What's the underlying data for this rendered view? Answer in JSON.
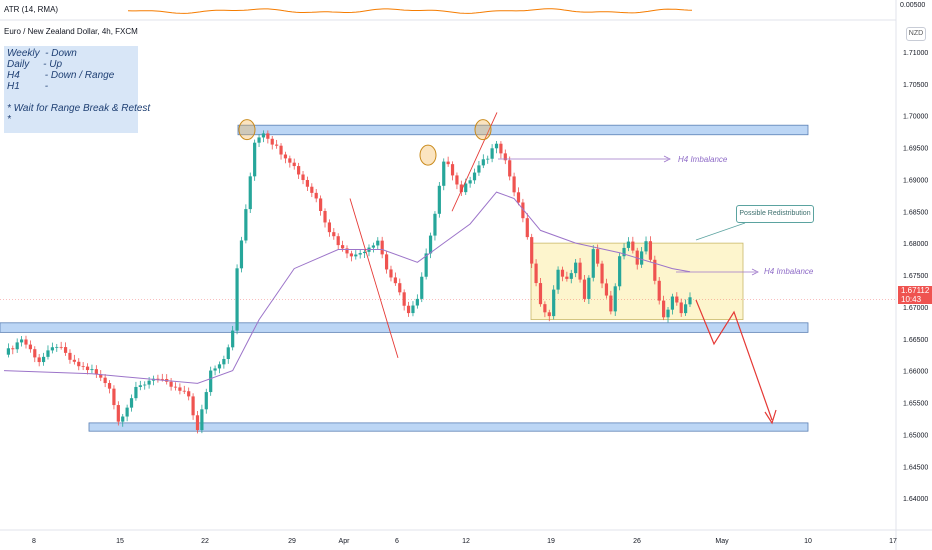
{
  "indicator": {
    "label": "ATR (14, RMA)",
    "axis_value": "0.00500"
  },
  "symbol": {
    "title": "Euro / New Zealand Dollar, 4h, FXCM",
    "currency": "NZD"
  },
  "note": {
    "lines": [
      "Weekly  - Down",
      "Daily     - Up",
      "H4         - Down / Range",
      "H1         -",
      "",
      "* Wait for Range Break & Retest",
      "*"
    ]
  },
  "price_tag": {
    "price": "1.67112",
    "countdown": "10:43"
  },
  "annotations": {
    "h4_imbalance_upper": "H4 Imbalance",
    "h4_imbalance_lower": "H4 Imbalance",
    "redistribution": "Possible Redistribution"
  },
  "colors": {
    "up": "#26a69a",
    "down": "#ef5350",
    "zone": "#bcd6f5",
    "range": "#fdf3c4",
    "ma": "#9c74c9",
    "arrow": "#e53935"
  },
  "chart_data": {
    "type": "candlestick",
    "title": "Euro / New Zealand Dollar, 4h, FXCM",
    "yaxis": {
      "min": 1.635,
      "max": 1.715,
      "ticks": [
        "1.71000",
        "1.70500",
        "1.70000",
        "1.69500",
        "1.69000",
        "1.68500",
        "1.68000",
        "1.67500",
        "1.67000",
        "1.66500",
        "1.66000",
        "1.65500",
        "1.65000",
        "1.64500",
        "1.64000"
      ]
    },
    "xaxis": {
      "ticks": [
        "8",
        "15",
        "22",
        "29",
        "Apr",
        "6",
        "12",
        "19",
        "26",
        "May",
        "10",
        "17"
      ]
    },
    "price_path": [
      [
        0,
        1.6625
      ],
      [
        4,
        1.665
      ],
      [
        8,
        1.6615
      ],
      [
        12,
        1.664
      ],
      [
        16,
        1.661
      ],
      [
        20,
        1.66
      ],
      [
        24,
        1.6575
      ],
      [
        26,
        1.652
      ],
      [
        30,
        1.657
      ],
      [
        34,
        1.659
      ],
      [
        38,
        1.6575
      ],
      [
        42,
        1.656
      ],
      [
        44,
        1.6505
      ],
      [
        47,
        1.66
      ],
      [
        50,
        1.662
      ],
      [
        52,
        1.666
      ],
      [
        53,
        1.676
      ],
      [
        55,
        1.685
      ],
      [
        57,
        1.696
      ],
      [
        59,
        1.6975
      ],
      [
        62,
        1.695
      ],
      [
        65,
        1.693
      ],
      [
        68,
        1.69
      ],
      [
        71,
        1.687
      ],
      [
        74,
        1.682
      ],
      [
        77,
        1.679
      ],
      [
        80,
        1.678
      ],
      [
        83,
        1.6795
      ],
      [
        85,
        1.6805
      ],
      [
        87,
        1.676
      ],
      [
        90,
        1.672
      ],
      [
        92,
        1.669
      ],
      [
        94,
        1.671
      ],
      [
        96,
        1.678
      ],
      [
        98,
        1.685
      ],
      [
        100,
        1.693
      ],
      [
        102,
        1.691
      ],
      [
        104,
        1.688
      ],
      [
        106,
        1.69
      ],
      [
        108,
        1.692
      ],
      [
        110,
        1.6935
      ],
      [
        112,
        1.696
      ],
      [
        114,
        1.693
      ],
      [
        116,
        1.688
      ],
      [
        118,
        1.684
      ],
      [
        120,
        1.677
      ],
      [
        122,
        1.67
      ],
      [
        124,
        1.669
      ],
      [
        126,
        1.676
      ],
      [
        128,
        1.674
      ],
      [
        130,
        1.677
      ],
      [
        132,
        1.671
      ],
      [
        134,
        1.679
      ],
      [
        136,
        1.674
      ],
      [
        138,
        1.669
      ],
      [
        140,
        1.678
      ],
      [
        142,
        1.68
      ],
      [
        144,
        1.677
      ],
      [
        146,
        1.68
      ],
      [
        148,
        1.674
      ],
      [
        150,
        1.668
      ],
      [
        152,
        1.672
      ],
      [
        154,
        1.669
      ],
      [
        156,
        1.6711
      ]
    ],
    "moving_average": [
      [
        0,
        1.66
      ],
      [
        20,
        1.6595
      ],
      [
        44,
        1.658
      ],
      [
        52,
        1.66
      ],
      [
        58,
        1.668
      ],
      [
        66,
        1.676
      ],
      [
        76,
        1.679
      ],
      [
        86,
        1.679
      ],
      [
        94,
        1.677
      ],
      [
        100,
        1.68
      ],
      [
        106,
        1.683
      ],
      [
        112,
        1.688
      ],
      [
        116,
        1.687
      ],
      [
        122,
        1.682
      ],
      [
        130,
        1.68
      ],
      [
        140,
        1.6785
      ],
      [
        152,
        1.676
      ],
      [
        156,
        1.6755
      ]
    ],
    "zones": [
      {
        "name": "resistance",
        "from": 1.697,
        "to": 1.6985
      },
      {
        "name": "support",
        "from": 1.666,
        "to": 1.6675
      },
      {
        "name": "target",
        "from": 1.6505,
        "to": 1.6518
      }
    ],
    "range_box": {
      "from": 1.668,
      "to": 1.68
    },
    "current_price": 1.67112
  }
}
